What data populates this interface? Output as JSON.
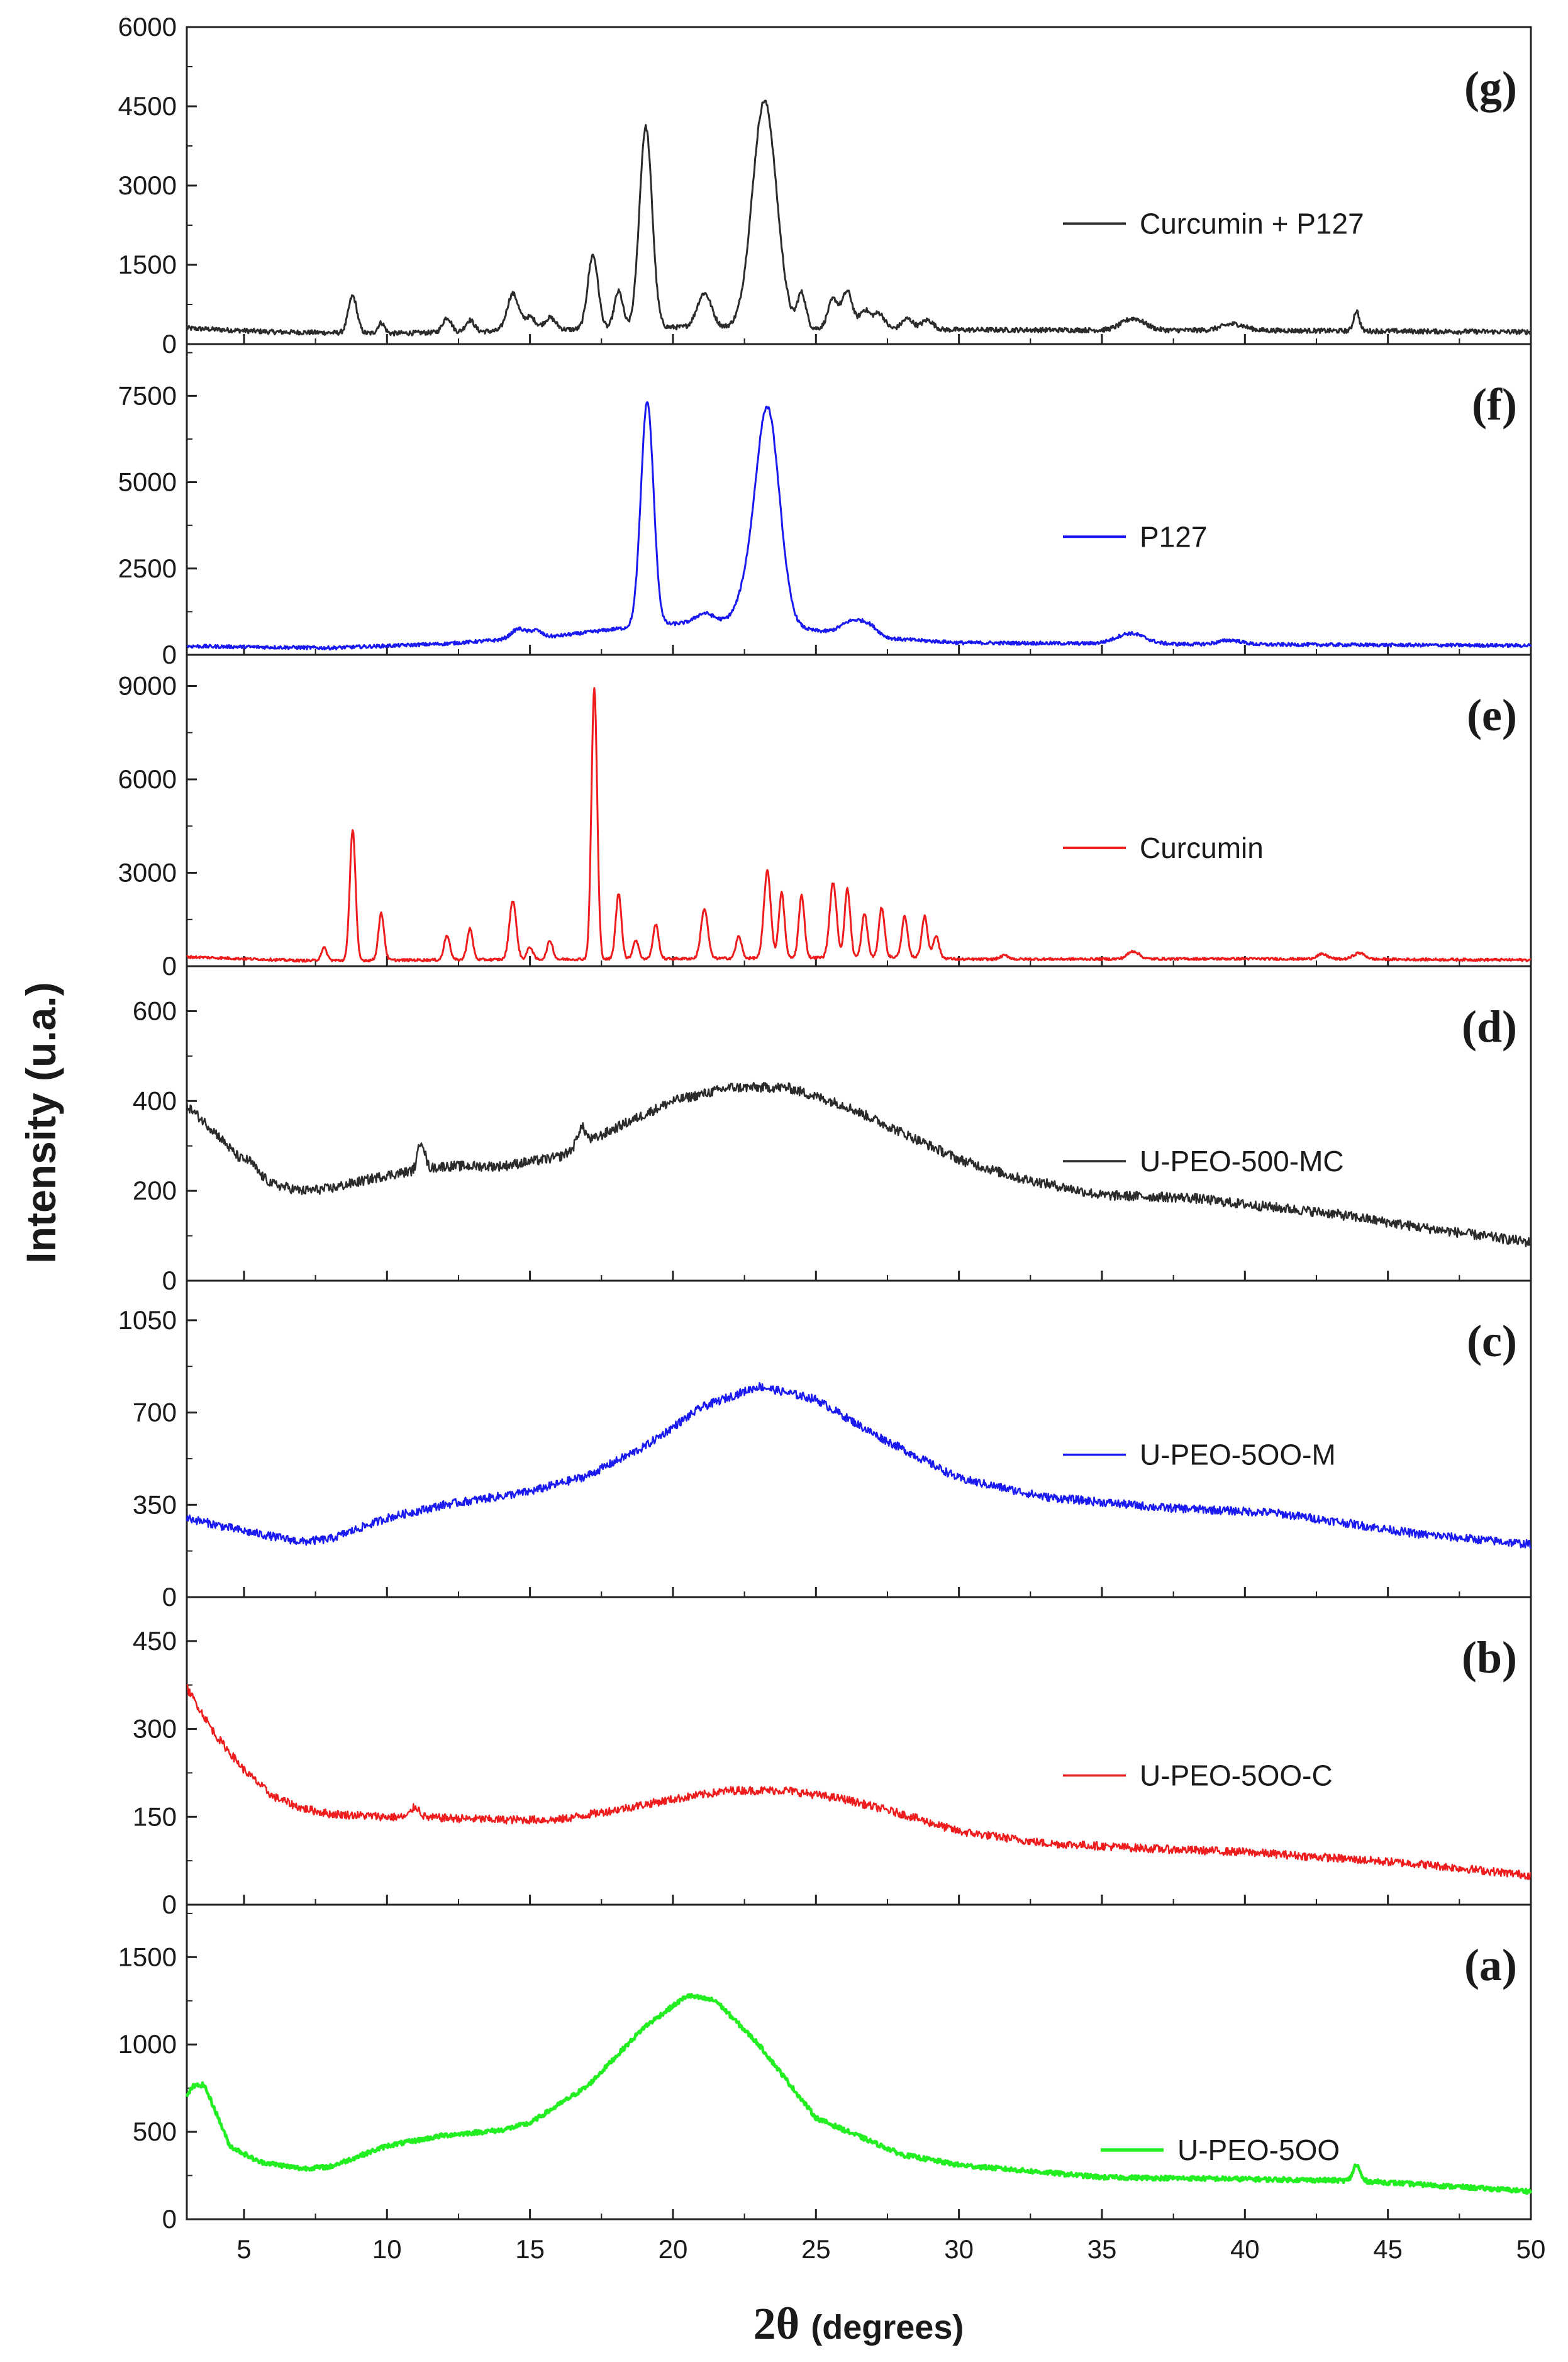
{
  "chart_data": {
    "type": "line",
    "title": "",
    "xlabel_symbol": "2θ",
    "xlabel_unit": "(degrees)",
    "ylabel": "Intensity (u.a.)",
    "xlim": [
      3,
      50
    ],
    "xticks": [
      5,
      10,
      15,
      20,
      25,
      30,
      35,
      40,
      45,
      50
    ],
    "xtick_labels": [
      "5",
      "10",
      "15",
      "20",
      "25",
      "30",
      "35",
      "40",
      "45",
      "50"
    ],
    "panels": [
      {
        "id": "g",
        "label": "(g)",
        "legend": "Curcumin + P127",
        "color": "#2b2b2b",
        "line_width": 3,
        "ylim": [
          0,
          6000
        ],
        "yticks": [
          0,
          1500,
          3000,
          4500,
          6000
        ],
        "ytick_labels": [
          "0",
          "1500",
          "3000",
          "4500",
          "6000"
        ],
        "baseline": [
          [
            3,
            300
          ],
          [
            6,
            230
          ],
          [
            10,
            200
          ],
          [
            16,
            270
          ],
          [
            20,
            320
          ],
          [
            30,
            270
          ],
          [
            40,
            260
          ],
          [
            50,
            230
          ]
        ],
        "peaks": [
          [
            8.8,
            700,
            0.15
          ],
          [
            9.8,
            200,
            0.12
          ],
          [
            12.1,
            280,
            0.15
          ],
          [
            12.9,
            220,
            0.15
          ],
          [
            14.4,
            700,
            0.2
          ],
          [
            15,
            250,
            0.2
          ],
          [
            15.7,
            230,
            0.2
          ],
          [
            17.2,
            1400,
            0.18
          ],
          [
            18.1,
            700,
            0.15
          ],
          [
            19.05,
            3800,
            0.22
          ],
          [
            21.1,
            650,
            0.25
          ],
          [
            23.2,
            4300,
            0.42
          ],
          [
            24.5,
            650,
            0.15
          ],
          [
            25.6,
            550,
            0.18
          ],
          [
            26.1,
            700,
            0.18
          ],
          [
            26.7,
            350,
            0.18
          ],
          [
            27.2,
            300,
            0.2
          ],
          [
            28.2,
            200,
            0.2
          ],
          [
            28.9,
            180,
            0.2
          ],
          [
            36.1,
            220,
            0.4
          ],
          [
            39.6,
            120,
            0.4
          ],
          [
            43.9,
            380,
            0.1
          ]
        ],
        "noise": 45
      },
      {
        "id": "f",
        "label": "(f)",
        "legend": "P127",
        "color": "#1a1af0",
        "line_width": 3,
        "ylim": [
          0,
          9000
        ],
        "yticks": [
          0,
          2500,
          5000,
          7500
        ],
        "ytick_labels": [
          "0",
          "2500",
          "5000",
          "7500"
        ],
        "baseline": [
          [
            3,
            250
          ],
          [
            8,
            200
          ],
          [
            12,
            320
          ],
          [
            16,
            550
          ],
          [
            18,
            750
          ],
          [
            20,
            900
          ],
          [
            22,
            1000
          ],
          [
            25,
            700
          ],
          [
            27,
            500
          ],
          [
            30,
            350
          ],
          [
            40,
            300
          ],
          [
            50,
            270
          ]
        ],
        "peaks": [
          [
            14.6,
            280,
            0.25
          ],
          [
            15.2,
            200,
            0.2
          ],
          [
            19.1,
            6500,
            0.22
          ],
          [
            21.1,
            250,
            0.3
          ],
          [
            22.5,
            500,
            0.3
          ],
          [
            23.3,
            6300,
            0.42
          ],
          [
            26.3,
            400,
            0.4
          ],
          [
            26.9,
            250,
            0.3
          ],
          [
            36,
            300,
            0.5
          ],
          [
            39.5,
            120,
            0.4
          ]
        ],
        "noise": 50
      },
      {
        "id": "e",
        "label": "(e)",
        "legend": "Curcumin",
        "color": "#ee1c1c",
        "line_width": 3,
        "ylim": [
          0,
          10000
        ],
        "yticks": [
          0,
          3000,
          6000,
          9000
        ],
        "ytick_labels": [
          "0",
          "3000",
          "6000",
          "9000"
        ],
        "baseline": [
          [
            3,
            300
          ],
          [
            7,
            180
          ],
          [
            20,
            240
          ],
          [
            29,
            300
          ],
          [
            30,
            220
          ],
          [
            40,
            240
          ],
          [
            50,
            200
          ]
        ],
        "peaks": [
          [
            7.8,
            400,
            0.1
          ],
          [
            8.8,
            4200,
            0.1
          ],
          [
            9.8,
            1500,
            0.1
          ],
          [
            12.1,
            800,
            0.1
          ],
          [
            12.9,
            1000,
            0.1
          ],
          [
            14.4,
            1900,
            0.12
          ],
          [
            15,
            400,
            0.1
          ],
          [
            15.7,
            600,
            0.1
          ],
          [
            17.25,
            8700,
            0.1
          ],
          [
            18.1,
            2100,
            0.1
          ],
          [
            18.7,
            600,
            0.1
          ],
          [
            19.4,
            1100,
            0.1
          ],
          [
            21.1,
            1600,
            0.12
          ],
          [
            22.3,
            700,
            0.1
          ],
          [
            23.3,
            2800,
            0.12
          ],
          [
            23.8,
            2100,
            0.1
          ],
          [
            24.5,
            2000,
            0.1
          ],
          [
            25.6,
            2400,
            0.12
          ],
          [
            26.1,
            2200,
            0.1
          ],
          [
            26.7,
            1400,
            0.1
          ],
          [
            27.3,
            1600,
            0.1
          ],
          [
            28.1,
            1300,
            0.1
          ],
          [
            28.8,
            1300,
            0.1
          ],
          [
            29.2,
            700,
            0.1
          ],
          [
            31.6,
            120,
            0.15
          ],
          [
            36.1,
            250,
            0.2
          ],
          [
            42.7,
            150,
            0.2
          ],
          [
            44,
            200,
            0.2
          ]
        ],
        "noise": 40
      },
      {
        "id": "d",
        "label": "(d)",
        "legend": "U-PEO-500-MC",
        "color": "#2b2b2b",
        "line_width": 2.5,
        "ylim": [
          0,
          700
        ],
        "yticks": [
          0,
          200,
          400,
          600
        ],
        "ytick_labels": [
          "0",
          "200",
          "400",
          "600"
        ],
        "baseline": [
          [
            3,
            390
          ],
          [
            4,
            330
          ],
          [
            5,
            260
          ],
          [
            6,
            215
          ],
          [
            7,
            200
          ],
          [
            8,
            205
          ],
          [
            10,
            235
          ],
          [
            12,
            255
          ],
          [
            14,
            255
          ],
          [
            16,
            275
          ],
          [
            18,
            340
          ],
          [
            20,
            400
          ],
          [
            22,
            430
          ],
          [
            24,
            430
          ],
          [
            26,
            390
          ],
          [
            28,
            330
          ],
          [
            30,
            270
          ],
          [
            32,
            230
          ],
          [
            35,
            190
          ],
          [
            38,
            185
          ],
          [
            40,
            170
          ],
          [
            43,
            150
          ],
          [
            46,
            120
          ],
          [
            50,
            85
          ]
        ],
        "peaks": [
          [
            11.2,
            65,
            0.12
          ],
          [
            16.8,
            40,
            0.15
          ],
          [
            5.2,
            15,
            0.2
          ]
        ],
        "noise": 11
      },
      {
        "id": "c",
        "label": "(c)",
        "legend": "U-PEO-5OO-M",
        "color": "#1a1af0",
        "line_width": 2.5,
        "ylim": [
          0,
          1200
        ],
        "yticks": [
          0,
          350,
          700,
          1050
        ],
        "ytick_labels": [
          "0",
          "350",
          "700",
          "1050"
        ],
        "baseline": [
          [
            3,
            300
          ],
          [
            5,
            250
          ],
          [
            7,
            210
          ],
          [
            8,
            220
          ],
          [
            10,
            300
          ],
          [
            12,
            350
          ],
          [
            15,
            400
          ],
          [
            17,
            460
          ],
          [
            19,
            570
          ],
          [
            21,
            720
          ],
          [
            23,
            800
          ],
          [
            25,
            750
          ],
          [
            27,
            620
          ],
          [
            30,
            450
          ],
          [
            33,
            380
          ],
          [
            37,
            340
          ],
          [
            41,
            320
          ],
          [
            43,
            290
          ],
          [
            46,
            240
          ],
          [
            50,
            200
          ]
        ],
        "peaks": [],
        "noise": 16
      },
      {
        "id": "b",
        "label": "(b)",
        "legend": "U-PEO-5OO-C",
        "color": "#ee1c1c",
        "line_width": 2.5,
        "ylim": [
          0,
          525
        ],
        "yticks": [
          0,
          150,
          300,
          450
        ],
        "ytick_labels": [
          "0",
          "150",
          "300",
          "450"
        ],
        "baseline": [
          [
            3,
            370
          ],
          [
            3.5,
            330
          ],
          [
            4,
            290
          ],
          [
            5,
            230
          ],
          [
            6,
            185
          ],
          [
            7,
            165
          ],
          [
            8,
            155
          ],
          [
            10,
            150
          ],
          [
            12,
            148
          ],
          [
            14,
            145
          ],
          [
            16,
            145
          ],
          [
            18,
            162
          ],
          [
            20,
            180
          ],
          [
            22,
            195
          ],
          [
            24,
            195
          ],
          [
            26,
            180
          ],
          [
            28,
            155
          ],
          [
            30,
            125
          ],
          [
            33,
            105
          ],
          [
            37,
            95
          ],
          [
            40,
            90
          ],
          [
            43,
            80
          ],
          [
            46,
            70
          ],
          [
            50,
            50
          ]
        ],
        "peaks": [
          [
            11,
            18,
            0.15
          ]
        ],
        "noise": 7
      },
      {
        "id": "a",
        "label": "(a)",
        "legend": "U-PEO-5OO",
        "color": "#22ee22",
        "line_width": 4.5,
        "ylim": [
          0,
          1800
        ],
        "yticks": [
          0,
          500,
          1000,
          1500
        ],
        "ytick_labels": [
          "0",
          "500",
          "1000",
          "1500"
        ],
        "baseline": [
          [
            3,
            700
          ],
          [
            3.2,
            760
          ],
          [
            3.6,
            770
          ],
          [
            4,
            620
          ],
          [
            4.5,
            420
          ],
          [
            5.5,
            330
          ],
          [
            7,
            290
          ],
          [
            8,
            300
          ],
          [
            10,
            420
          ],
          [
            12,
            480
          ],
          [
            14,
            510
          ],
          [
            15,
            550
          ],
          [
            17,
            760
          ],
          [
            19,
            1100
          ],
          [
            20.5,
            1280
          ],
          [
            21.5,
            1250
          ],
          [
            23,
            1000
          ],
          [
            25,
            580
          ],
          [
            28,
            370
          ],
          [
            30,
            310
          ],
          [
            35,
            240
          ],
          [
            40,
            230
          ],
          [
            44,
            220
          ],
          [
            50,
            160
          ]
        ],
        "peaks": [
          [
            43.9,
            90,
            0.12
          ]
        ],
        "noise": 13
      }
    ]
  }
}
